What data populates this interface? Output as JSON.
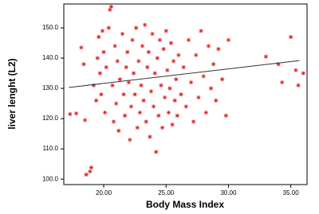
{
  "chart_data": {
    "type": "scatter",
    "xlabel": "Body Mass Index",
    "ylabel": "liver lenght (L2)",
    "color": "#e02020",
    "x": [
      17.3,
      17.8,
      18.2,
      18.4,
      18.5,
      18.6,
      18.9,
      19.0,
      19.2,
      19.4,
      19.5,
      19.6,
      19.7,
      19.8,
      19.9,
      20.0,
      20.1,
      20.2,
      20.4,
      20.5,
      20.6,
      20.7,
      20.8,
      20.9,
      21.0,
      21.1,
      21.2,
      21.3,
      21.5,
      21.6,
      21.7,
      21.8,
      21.9,
      22.0,
      22.1,
      22.2,
      22.3,
      22.4,
      22.5,
      22.6,
      22.7,
      22.8,
      22.9,
      23.0,
      23.1,
      23.2,
      23.3,
      23.4,
      23.5,
      23.6,
      23.7,
      23.8,
      23.9,
      24.0,
      24.1,
      24.2,
      24.3,
      24.4,
      24.5,
      24.6,
      24.7,
      24.8,
      24.9,
      25.0,
      25.1,
      25.2,
      25.3,
      25.4,
      25.5,
      25.6,
      25.7,
      25.8,
      25.9,
      26.0,
      26.2,
      26.4,
      26.6,
      26.8,
      27.0,
      27.2,
      27.4,
      27.6,
      27.8,
      28.0,
      28.2,
      28.4,
      28.6,
      28.8,
      29.0,
      29.2,
      29.5,
      29.8,
      30.0,
      33.0,
      34.0,
      34.3,
      35.0,
      35.4,
      35.6,
      36.0
    ],
    "values": [
      121.5,
      121.7,
      143.5,
      138,
      119.5,
      101.5,
      102.5,
      103.8,
      131,
      126,
      140,
      147,
      135,
      128,
      149,
      142,
      122,
      137,
      150,
      156,
      157,
      131,
      119,
      144,
      125,
      139,
      116,
      133,
      148,
      128,
      121,
      137,
      142,
      132,
      113,
      124,
      146,
      135,
      128,
      150,
      117,
      139,
      122,
      131,
      144,
      126,
      151,
      119,
      137,
      142,
      114,
      129,
      148,
      124,
      135,
      109,
      140,
      121,
      146,
      131,
      117,
      143,
      127,
      149,
      136,
      122,
      130,
      145,
      118,
      139,
      126,
      133,
      121,
      141,
      128,
      137,
      124,
      146,
      132,
      119,
      141,
      127,
      149,
      134,
      122,
      144,
      130,
      138,
      126,
      143,
      133,
      121,
      146,
      140.5,
      138,
      132,
      147,
      136,
      131,
      135
    ],
    "fit_line": {
      "x": [
        17.2,
        35.7
      ],
      "values": [
        130.3,
        139.2
      ],
      "color": "#333333"
    },
    "xlim": [
      16.8,
      36.3
    ],
    "ylim": [
      98.2,
      157.9
    ],
    "xticks": [
      {
        "value": 20,
        "label": "20.00"
      },
      {
        "value": 25,
        "label": "25.00"
      },
      {
        "value": 30,
        "label": "30.00"
      },
      {
        "value": 35,
        "label": "35.00"
      }
    ],
    "yticks": [
      {
        "value": 100,
        "label": "100.0"
      },
      {
        "value": 110,
        "label": "110.0"
      },
      {
        "value": 120,
        "label": "120.0"
      },
      {
        "value": 130,
        "label": "130.0"
      },
      {
        "value": 140,
        "label": "140.0"
      },
      {
        "value": 150,
        "label": "150.0"
      }
    ]
  }
}
